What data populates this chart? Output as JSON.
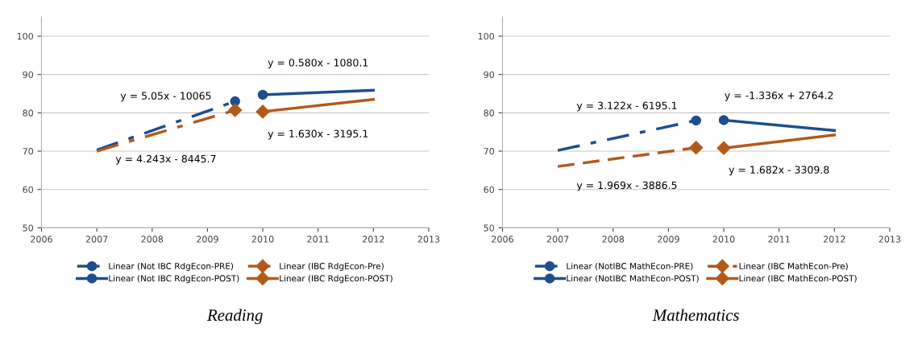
{
  "chart_data": [
    {
      "type": "line",
      "xlabel": "Reading",
      "xlim": [
        2006,
        2013
      ],
      "xticks": [
        2006,
        2007,
        2008,
        2009,
        2010,
        2011,
        2012,
        2013
      ],
      "ylim": [
        50,
        105
      ],
      "yticks": [
        50,
        60,
        70,
        80,
        90,
        100
      ],
      "grid": "y",
      "legend": "bottom",
      "series": [
        {
          "name": "Linear (Not IBC RdgEcon-PRE)",
          "color": "#1f4e8c",
          "x": [
            2007,
            2009.5
          ],
          "values": [
            70.3,
            83.0
          ],
          "line_style": "dashdot",
          "marker": "circle"
        },
        {
          "name": "Linear (IBC RdgEcon-Pre)",
          "color": "#b35a1a",
          "x": [
            2007,
            2009.5
          ],
          "values": [
            70.0,
            80.7
          ],
          "line_style": "dashdot",
          "marker": "diamond"
        },
        {
          "name": "Linear (Not IBC RdgEcon-POST)",
          "color": "#1f4e8c",
          "x": [
            2010,
            2012
          ],
          "values": [
            84.7,
            85.9
          ],
          "line_style": "solid",
          "marker": "circle"
        },
        {
          "name": "Linear (IBC RdgEcon-POST)",
          "color": "#b35a1a",
          "x": [
            2010,
            2012
          ],
          "values": [
            80.3,
            83.5
          ],
          "line_style": "solid",
          "marker": "diamond"
        }
      ],
      "annotations": [
        "y = 5.05x - 10065",
        "y = 4.243x - 8445.7",
        "y = 0.580x - 1080.1",
        "y = 1.630x - 3195.1"
      ]
    },
    {
      "type": "line",
      "xlabel": "Mathematics",
      "xlim": [
        2006,
        2013
      ],
      "xticks": [
        2006,
        2007,
        2008,
        2009,
        2010,
        2011,
        2012,
        2013
      ],
      "ylim": [
        50,
        105
      ],
      "yticks": [
        50,
        60,
        70,
        80,
        90,
        100
      ],
      "grid": "y",
      "legend": "bottom",
      "series": [
        {
          "name": "Linear (NotIBC MathEcon-PRE)",
          "color": "#1f4e8c",
          "x": [
            2007,
            2009.5
          ],
          "values": [
            70.2,
            78.0
          ],
          "line_style": "dashdot",
          "marker": "circle"
        },
        {
          "name": "Linear (IBC MathEcon-Pre)",
          "color": "#b35a1a",
          "x": [
            2007,
            2009.5
          ],
          "values": [
            66.0,
            70.9
          ],
          "line_style": "dashed",
          "marker": "diamond"
        },
        {
          "name": "Linear (NotIBC MathEcon-POST)",
          "color": "#1f4e8c",
          "x": [
            2010,
            2012
          ],
          "values": [
            78.1,
            75.4
          ],
          "line_style": "solid",
          "marker": "circle"
        },
        {
          "name": "Linear (IBC MathEcon-POST)",
          "color": "#b35a1a",
          "x": [
            2010,
            2012
          ],
          "values": [
            70.8,
            74.2
          ],
          "line_style": "solid",
          "marker": "diamond"
        }
      ],
      "annotations": [
        "y = 3.122x - 6195.1",
        "y = 1.969x - 3886.5",
        "y = -1.336x + 2764.2",
        "y = 1.682x - 3309.8"
      ]
    }
  ]
}
